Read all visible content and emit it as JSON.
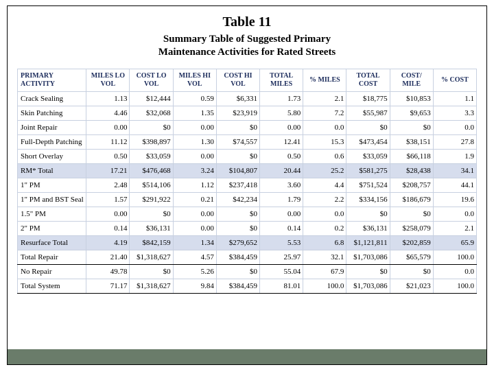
{
  "title": "Table 11",
  "subtitle_line1": "Summary Table of Suggested Primary",
  "subtitle_line2": "Maintenance Activities for Rated Streets",
  "columns": [
    "PRIMARY ACTIVITY",
    "MILES LO VOL",
    "COST LO VOL",
    "MILES HI VOL",
    "COST HI VOL",
    "TOTAL MILES",
    "% MILES",
    "TOTAL COST",
    "COST/ MILE",
    "% COST"
  ],
  "rows": [
    {
      "style": "plain",
      "cells": [
        "Crack Sealing",
        "1.13",
        "$12,444",
        "0.59",
        "$6,331",
        "1.73",
        "2.1",
        "$18,775",
        "$10,853",
        "1.1"
      ]
    },
    {
      "style": "plain",
      "cells": [
        "Skin Patching",
        "4.46",
        "$32,068",
        "1.35",
        "$23,919",
        "5.80",
        "7.2",
        "$55,987",
        "$9,653",
        "3.3"
      ]
    },
    {
      "style": "plain",
      "cells": [
        "Joint Repair",
        "0.00",
        "$0",
        "0.00",
        "$0",
        "0.00",
        "0.0",
        "$0",
        "$0",
        "0.0"
      ]
    },
    {
      "style": "plain",
      "cells": [
        "Full-Depth Patching",
        "11.12",
        "$398,897",
        "1.30",
        "$74,557",
        "12.41",
        "15.3",
        "$473,454",
        "$38,151",
        "27.8"
      ]
    },
    {
      "style": "plain",
      "cells": [
        "Short Overlay",
        "0.50",
        "$33,059",
        "0.00",
        "$0",
        "0.50",
        "0.6",
        "$33,059",
        "$66,118",
        "1.9"
      ]
    },
    {
      "style": "shaded",
      "cells": [
        "RM* Total",
        "17.21",
        "$476,468",
        "3.24",
        "$104,807",
        "20.44",
        "25.2",
        "$581,275",
        "$28,438",
        "34.1"
      ]
    },
    {
      "style": "plain",
      "cells": [
        "1\" PM",
        "2.48",
        "$514,106",
        "1.12",
        "$237,418",
        "3.60",
        "4.4",
        "$751,524",
        "$208,757",
        "44.1"
      ]
    },
    {
      "style": "plain",
      "cells": [
        "1\" PM and BST Seal",
        "1.57",
        "$291,922",
        "0.21",
        "$42,234",
        "1.79",
        "2.2",
        "$334,156",
        "$186,679",
        "19.6"
      ]
    },
    {
      "style": "plain",
      "cells": [
        "1.5\" PM",
        "0.00",
        "$0",
        "0.00",
        "$0",
        "0.00",
        "0.0",
        "$0",
        "$0",
        "0.0"
      ]
    },
    {
      "style": "plain",
      "cells": [
        "2\" PM",
        "0.14",
        "$36,131",
        "0.00",
        "$0",
        "0.14",
        "0.2",
        "$36,131",
        "$258,079",
        "2.1"
      ]
    },
    {
      "style": "shaded",
      "cells": [
        "Resurface Total",
        "4.19",
        "$842,159",
        "1.34",
        "$279,652",
        "5.53",
        "6.8",
        "$1,121,811",
        "$202,859",
        "65.9"
      ]
    },
    {
      "style": "borderrow",
      "cells": [
        "Total Repair",
        "21.40",
        "$1,318,627",
        "4.57",
        "$384,459",
        "25.97",
        "32.1",
        "$1,703,086",
        "$65,579",
        "100.0"
      ]
    },
    {
      "style": "plain",
      "cells": [
        "No Repair",
        "49.78",
        "$0",
        "5.26",
        "$0",
        "55.04",
        "67.9",
        "$0",
        "$0",
        "0.0"
      ]
    },
    {
      "style": "borderrow",
      "cells": [
        "Total System",
        "71.17",
        "$1,318,627",
        "9.84",
        "$384,459",
        "81.01",
        "100.0",
        "$1,703,086",
        "$21,023",
        "100.0"
      ]
    }
  ]
}
